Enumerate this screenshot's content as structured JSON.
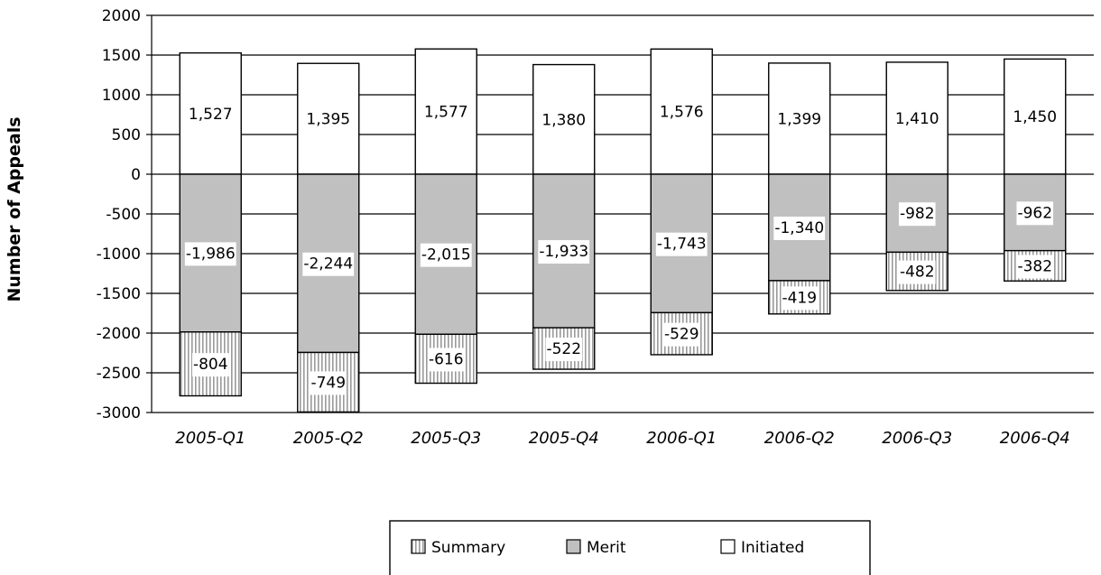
{
  "chart_data": {
    "type": "bar",
    "stacked": true,
    "categories": [
      "2005-Q1",
      "2005-Q2",
      "2005-Q3",
      "2005-Q4",
      "2006-Q1",
      "2006-Q2",
      "2006-Q3",
      "2006-Q4"
    ],
    "series": [
      {
        "name": "Initiated",
        "values": [
          1527,
          1395,
          1577,
          1380,
          1576,
          1399,
          1410,
          1450
        ],
        "labels": [
          "1,527",
          "1,395",
          "1,577",
          "1,380",
          "1,576",
          "1,399",
          "1,410",
          "1,450"
        ],
        "fill": "#ffffff"
      },
      {
        "name": "Merit",
        "values": [
          -1986,
          -2244,
          -2015,
          -1933,
          -1743,
          -1340,
          -982,
          -962
        ],
        "labels": [
          "-1,986",
          "-2,244",
          "-2,015",
          "-1,933",
          "-1,743",
          "-1,340",
          "-982",
          "-962"
        ],
        "fill": "#c0c0c0"
      },
      {
        "name": "Summary",
        "values": [
          -804,
          -749,
          -616,
          -522,
          -529,
          -419,
          -482,
          -382
        ],
        "labels": [
          "-804",
          "-749",
          "-616",
          "-522",
          "-529",
          "-419",
          "-482",
          "-382"
        ],
        "fill": "vertical-stripes"
      }
    ],
    "ylabel": "Number of Appeals",
    "xlabel": "",
    "ylim": [
      -3000,
      2000
    ],
    "yticks": [
      2000,
      1500,
      1000,
      500,
      0,
      -500,
      -1000,
      -1500,
      -2000,
      -2500,
      -3000
    ],
    "grid": true,
    "legend": {
      "position": "bottom-center",
      "entries": [
        "Summary",
        "Merit",
        "Initiated"
      ]
    }
  }
}
